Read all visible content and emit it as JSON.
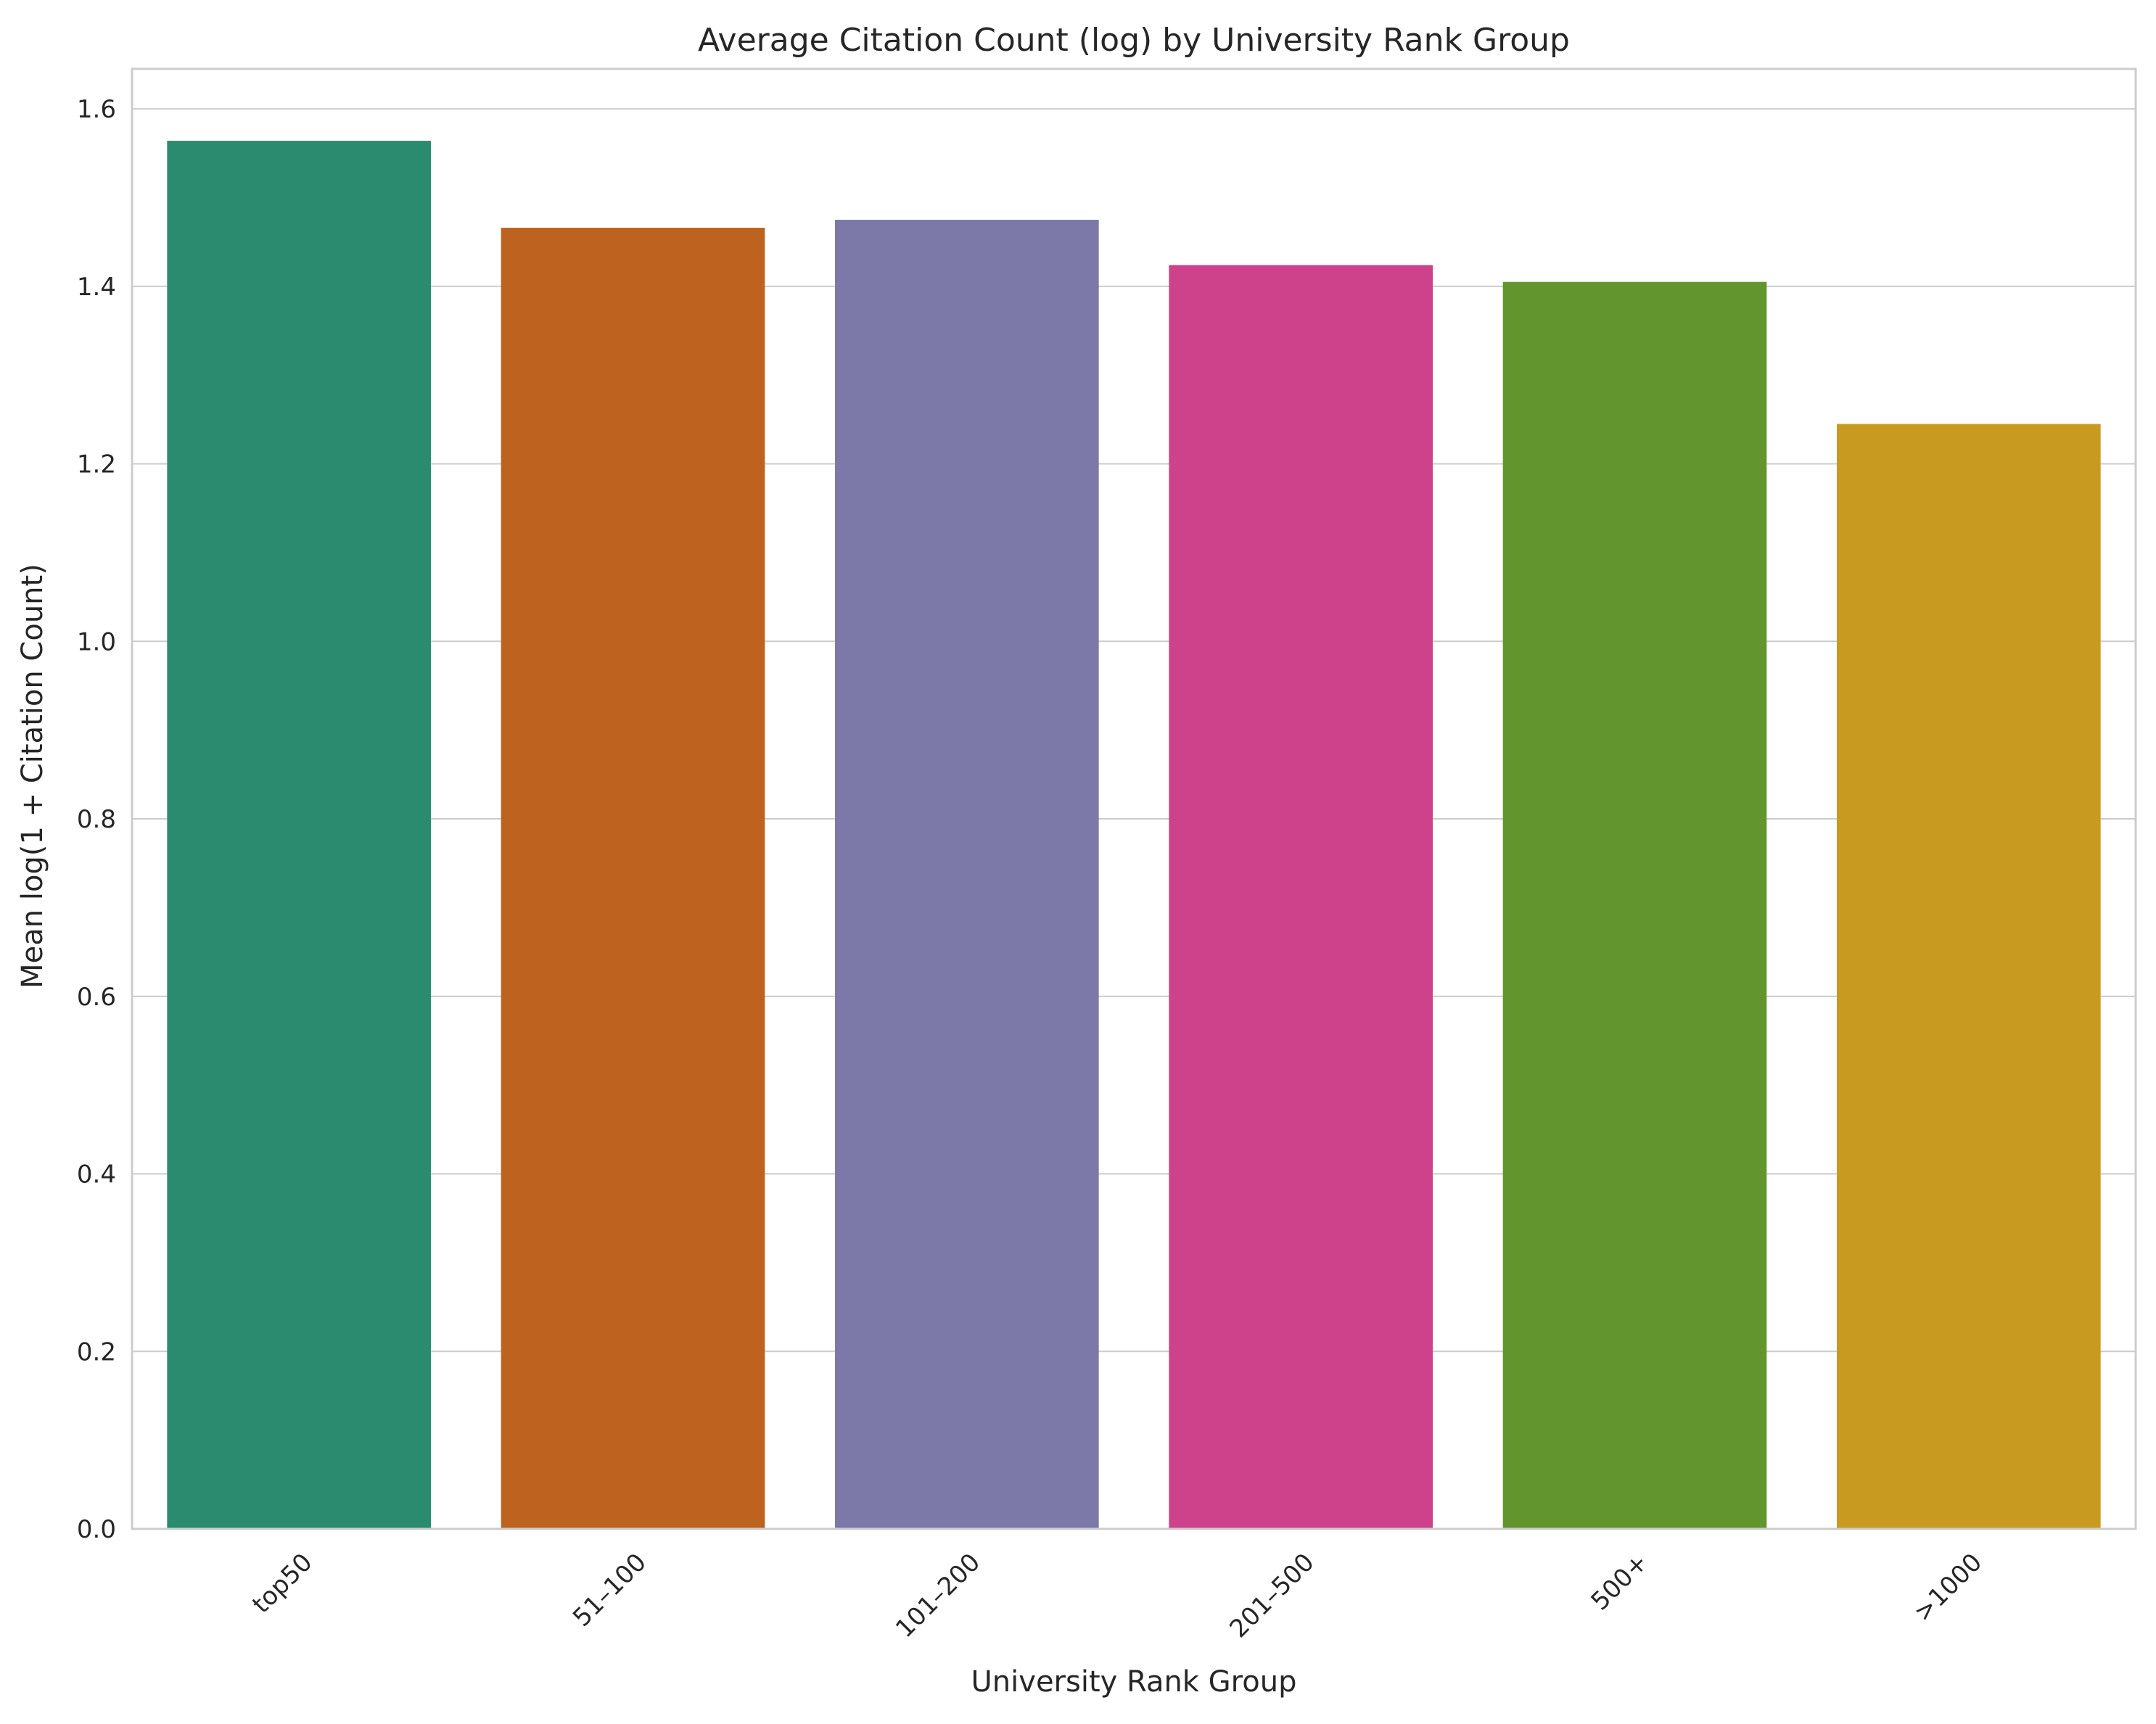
{
  "chart_data": {
    "type": "bar",
    "title": "Average Citation Count (log) by University Rank Group",
    "xlabel": "University Rank Group",
    "ylabel": "Mean log(1 + Citation Count)",
    "categories": [
      "top50",
      "51–100",
      "101–200",
      "201–500",
      "500+",
      ">1000"
    ],
    "values": [
      1.564,
      1.466,
      1.475,
      1.424,
      1.405,
      1.245
    ],
    "colors": [
      "#2a8b6f",
      "#bd631f",
      "#7c79a9",
      "#cd428b",
      "#63952e",
      "#c89b20"
    ],
    "ylim": [
      0,
      1.645
    ],
    "yticks": [
      0.0,
      0.2,
      0.4,
      0.6,
      0.8,
      1.0,
      1.2,
      1.4,
      1.6
    ],
    "ytick_labels": [
      "0.0",
      "0.2",
      "0.4",
      "0.6",
      "0.8",
      "1.0",
      "1.2",
      "1.4",
      "1.6"
    ],
    "grid": "horizontal",
    "legend": "none"
  }
}
